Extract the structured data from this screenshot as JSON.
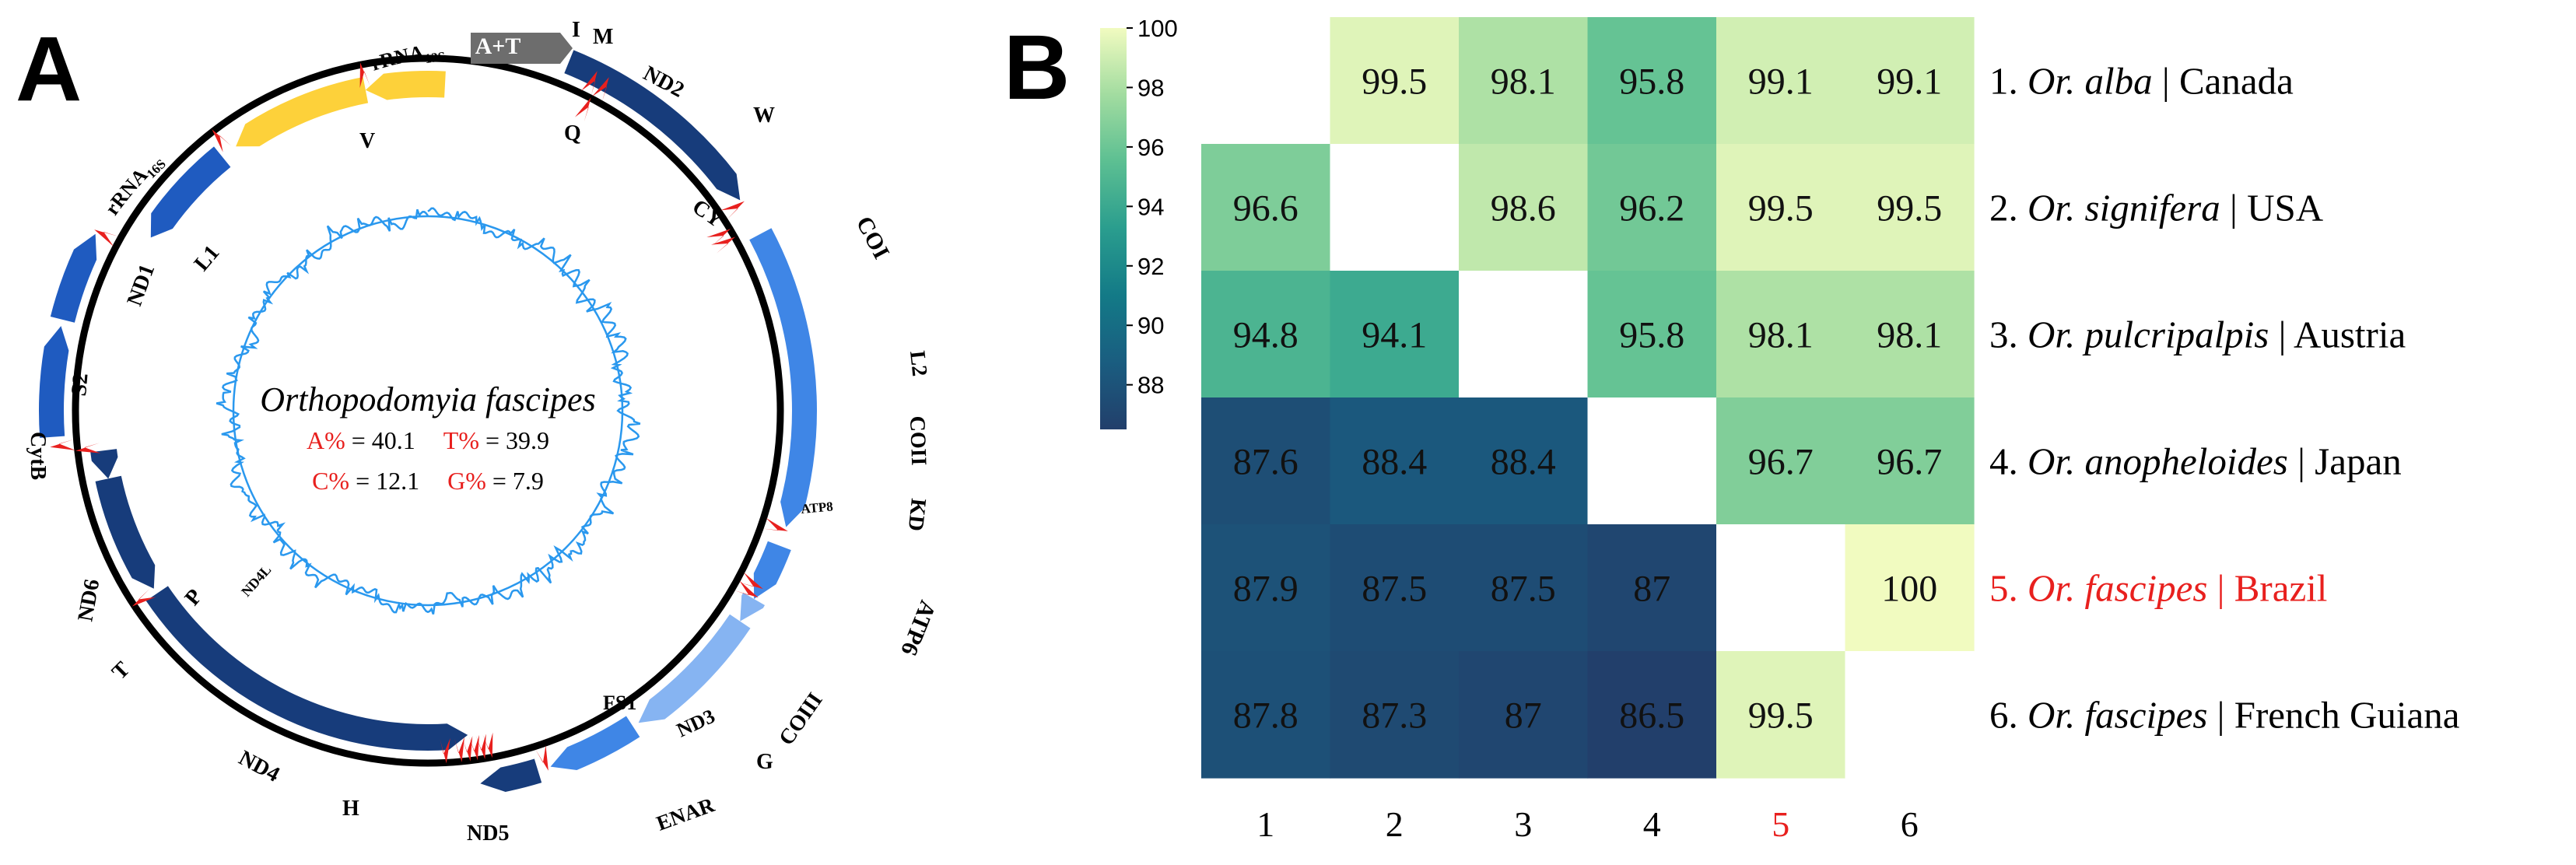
{
  "panel_a": {
    "letter": "A",
    "species": "Orthopodomyia fascipes",
    "composition": [
      {
        "label": "A%",
        "value": "= 40.1"
      },
      {
        "label": "T%",
        "value": "= 39.9"
      },
      {
        "label": "C%",
        "value": "= 12.1"
      },
      {
        "label": "G%",
        "value": "= 7.9"
      }
    ],
    "gene_labels": {
      "control_region": "A+T",
      "rrna12s": "rRNA",
      "rrna12s_sub": "12S",
      "rrna16s": "rRNA",
      "rrna16s_sub": "16S",
      "nd2": "ND2",
      "coi": "COI",
      "coii": "COII",
      "atp8": "ATP8",
      "atp6": "ATP6",
      "coiii": "COIII",
      "nd3": "ND3",
      "nd5": "ND5",
      "nd4": "ND4",
      "nd4l": "ND4L",
      "nd6": "ND6",
      "cytb": "CytB",
      "nd1": "ND1",
      "trna_i": "I",
      "trna_m": "M",
      "trna_q": "Q",
      "trna_w": "W",
      "trna_cy": "CY",
      "trna_v": "V",
      "trna_l1": "L1",
      "trna_l2": "L2",
      "trna_kd": "KD",
      "trna_g": "G",
      "trna_enar": "ENAR",
      "trna_fs1": "FS1",
      "trna_h": "H",
      "trna_p": "P",
      "trna_t": "T",
      "trna_s2": "S2"
    },
    "colors": {
      "dark_blue": "#173c7b",
      "mid_blue": "#1f5bc0",
      "light_blue": "#3f86e6",
      "pale_blue": "#86b4f2",
      "rrna_yellow": "#fdd13a",
      "control_grey": "#6d6d6d",
      "trna_red": "#e8201e",
      "gc_skew": "#2a98ee"
    }
  },
  "panel_b": {
    "letter": "B",
    "colorbar": {
      "ticks": [
        "100",
        "98",
        "96",
        "94",
        "92",
        "90",
        "88"
      ],
      "min": 86.5,
      "max": 100,
      "stops": [
        "#223f6b",
        "#1a5d80",
        "#137a87",
        "#2a9d8e",
        "#5cbf92",
        "#a2dca0",
        "#f1fbc0"
      ]
    },
    "row_labels": [
      {
        "num": "1.",
        "name": "Or. alba",
        "place": "| Canada"
      },
      {
        "num": "2.",
        "name": "Or. signifera",
        "place": "| USA"
      },
      {
        "num": "3.",
        "name": "Or. pulcripalpis",
        "place": "| Austria"
      },
      {
        "num": "4.",
        "name": "Or. anopheloides",
        "place": "| Japan"
      },
      {
        "num": "5.",
        "name": "Or. fascipes",
        "place": "| Brazil"
      },
      {
        "num": "6.",
        "name": "Or. fascipes",
        "place": "| French Guiana"
      }
    ],
    "col_labels": [
      "1",
      "2",
      "3",
      "4",
      "5",
      "6"
    ],
    "highlight_index": 4,
    "highlight_color": "#e8201e"
  },
  "chart_data": {
    "type": "heatmap",
    "title": "",
    "xlabel": "",
    "ylabel": "",
    "categories": [
      "1",
      "2",
      "3",
      "4",
      "5",
      "6"
    ],
    "matrix": [
      [
        null,
        99.5,
        98.1,
        95.8,
        99.1,
        99.1
      ],
      [
        96.6,
        null,
        98.6,
        96.2,
        99.5,
        99.5
      ],
      [
        94.8,
        94.1,
        null,
        95.8,
        98.1,
        98.1
      ],
      [
        87.6,
        88.4,
        88.4,
        null,
        96.7,
        96.7
      ],
      [
        87.9,
        87.5,
        87.5,
        87,
        null,
        100
      ],
      [
        87.8,
        87.3,
        87,
        86.5,
        99.5,
        null
      ]
    ],
    "value_labels": [
      [
        "",
        "99.5",
        "98.1",
        "95.8",
        "99.1",
        "99.1"
      ],
      [
        "96.6",
        "",
        "98.6",
        "96.2",
        "99.5",
        "99.5"
      ],
      [
        "94.8",
        "94.1",
        "",
        "95.8",
        "98.1",
        "98.1"
      ],
      [
        "87.6",
        "88.4",
        "88.4",
        "",
        "96.7",
        "96.7"
      ],
      [
        "87.9",
        "87.5",
        "87.5",
        "87",
        "",
        "100"
      ],
      [
        "87.8",
        "87.3",
        "87",
        "86.5",
        "99.5",
        ""
      ]
    ],
    "colorbar_range": [
      86.5,
      100
    ]
  }
}
